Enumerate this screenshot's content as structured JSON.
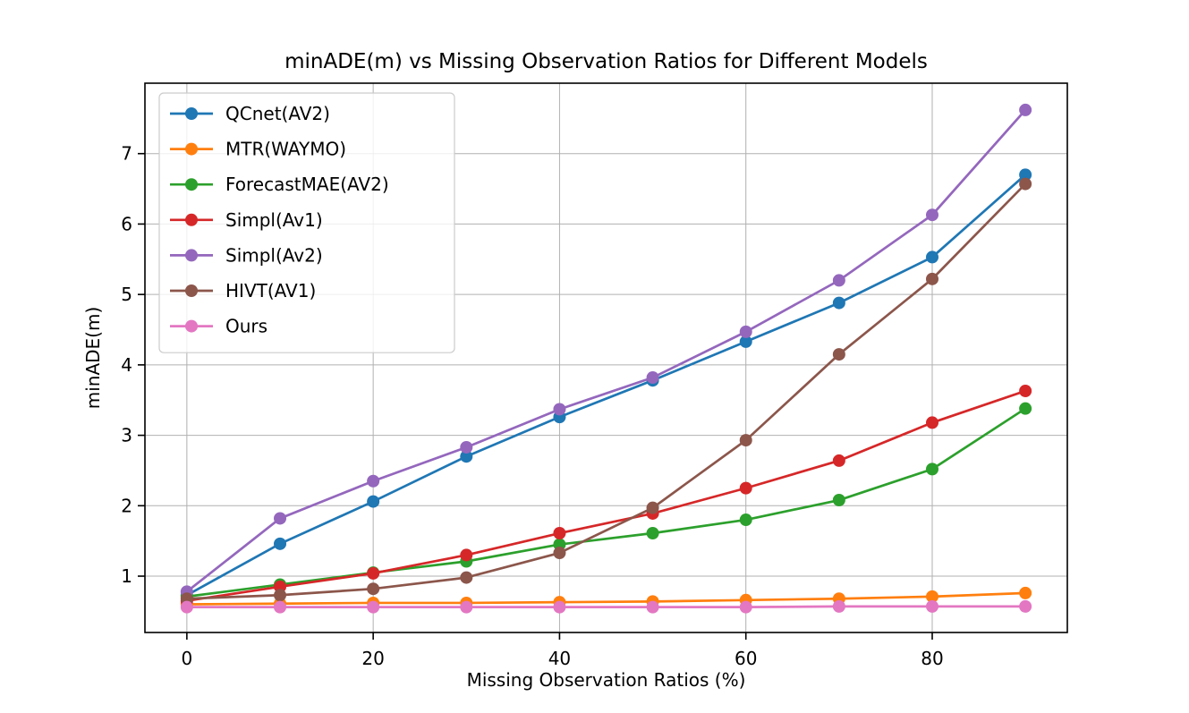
{
  "chart_data": {
    "type": "line",
    "title": "minADE(m) vs Missing Observation Ratios for Different Models",
    "xlabel": "Missing Observation Ratios (%)",
    "ylabel": "minADE(m)",
    "x": [
      0,
      10,
      20,
      30,
      40,
      50,
      60,
      70,
      80,
      90
    ],
    "series": [
      {
        "name": "QCnet(AV2)",
        "color": "#1f77b4",
        "values": [
          0.73,
          1.46,
          2.06,
          2.7,
          3.26,
          3.78,
          4.33,
          4.88,
          5.53,
          6.7
        ]
      },
      {
        "name": "MTR(WAYMO)",
        "color": "#ff7f0e",
        "values": [
          0.6,
          0.61,
          0.62,
          0.62,
          0.63,
          0.64,
          0.66,
          0.68,
          0.71,
          0.76
        ]
      },
      {
        "name": "ForecastMAE(AV2)",
        "color": "#2ca02c",
        "values": [
          0.71,
          0.88,
          1.05,
          1.21,
          1.45,
          1.61,
          1.8,
          2.08,
          2.52,
          3.38
        ]
      },
      {
        "name": "Simpl(Av1)",
        "color": "#d62728",
        "values": [
          0.65,
          0.85,
          1.04,
          1.3,
          1.61,
          1.89,
          2.25,
          2.64,
          3.18,
          3.63
        ]
      },
      {
        "name": "Simpl(Av2)",
        "color": "#9467bd",
        "values": [
          0.78,
          1.82,
          2.35,
          2.83,
          3.37,
          3.82,
          4.47,
          5.2,
          6.13,
          7.62
        ]
      },
      {
        "name": "HIVT(AV1)",
        "color": "#8c564b",
        "values": [
          0.68,
          0.73,
          0.82,
          0.98,
          1.33,
          1.97,
          2.93,
          4.15,
          5.22,
          6.57
        ]
      },
      {
        "name": "Ours",
        "color": "#e377c2",
        "values": [
          0.56,
          0.56,
          0.56,
          0.56,
          0.56,
          0.56,
          0.56,
          0.57,
          0.57,
          0.57
        ]
      }
    ],
    "xlim": [
      -4.5,
      94.5
    ],
    "ylim": [
      0.2,
      8.0
    ],
    "xticks": [
      0,
      20,
      40,
      60,
      80
    ],
    "yticks": [
      1,
      2,
      3,
      4,
      5,
      6,
      7
    ],
    "grid": true,
    "grid_color": "#b0b0b0",
    "spine_color": "#000000",
    "legend_position": "upper left",
    "legend_border_color": "#cccccc",
    "background": "#ffffff"
  }
}
